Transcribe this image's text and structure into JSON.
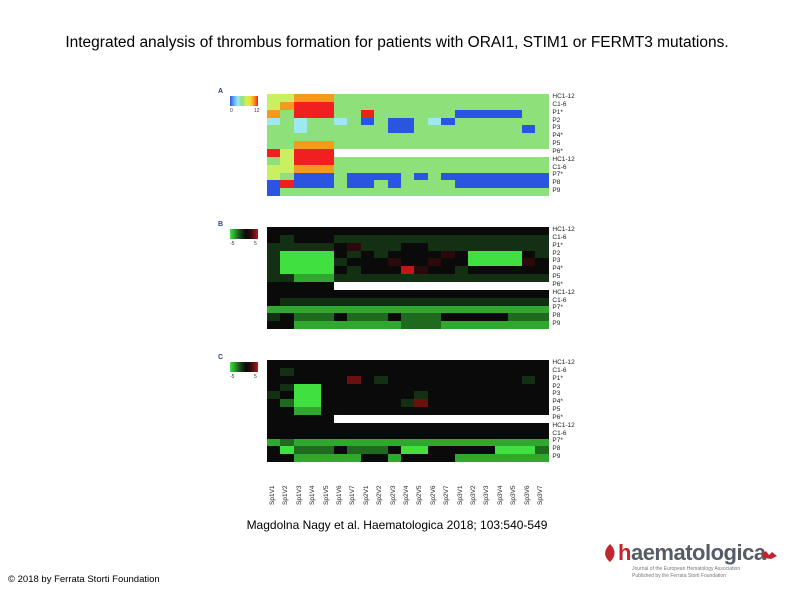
{
  "title": "Integrated analysis of thrombus formation for patients with ORAI1, STIM1 or FERMT3 mutations.",
  "citation": "Magdolna Nagy et al. Haematologica 2018; 103:540-549",
  "copyright": "© 2018 by Ferrata Storti Foundation",
  "logo": {
    "name": "haematologica",
    "subline1": "Journal of the European Hematology Association",
    "subline2": "Published by the Ferrata Storti Foundation"
  },
  "row_labels": [
    "HC1-12",
    "C1-6",
    "P1*",
    "P2",
    "P3",
    "P4*",
    "P5",
    "P6*",
    "HC1-12",
    "C1-6",
    "P7*",
    "P8",
    "P9"
  ],
  "column_labels": [
    "Sp1V1",
    "Sp1V2",
    "Sp1V3",
    "Sp1V4",
    "Sp1V5",
    "Sp1V6",
    "Sp1V7",
    "Sp2V1",
    "Sp2V2",
    "Sp2V3",
    "Sp2V4",
    "Sp2V5",
    "Sp2V6",
    "Sp2V7",
    "Sp3V1",
    "Sp3V2",
    "Sp3V3",
    "Sp3V4",
    "Sp3V5",
    "Sp3V6",
    "Sp3V7"
  ],
  "panels": [
    {
      "letter": "A",
      "legend_min": "0",
      "legend_max": "12",
      "colors": [
        "#2b55e0",
        "#5fb0f5",
        "#a0e8f0",
        "#8ee07a",
        "#c8f060",
        "#f5e030",
        "#f59a20",
        "#f02020"
      ],
      "values": [
        [
          4,
          4,
          6,
          6,
          6,
          3,
          3,
          3,
          3,
          3,
          3,
          3,
          3,
          3,
          3,
          3,
          3,
          3,
          3,
          3,
          3
        ],
        [
          4,
          6,
          7,
          7,
          7,
          3,
          3,
          3,
          3,
          3,
          3,
          3,
          3,
          3,
          3,
          3,
          3,
          3,
          3,
          3,
          3
        ],
        [
          6,
          3,
          7,
          7,
          7,
          3,
          3,
          7,
          3,
          3,
          3,
          3,
          3,
          3,
          0,
          0,
          0,
          0,
          0,
          3,
          3
        ],
        [
          2,
          3,
          2,
          3,
          3,
          2,
          3,
          0,
          3,
          0,
          0,
          3,
          2,
          0,
          3,
          3,
          3,
          3,
          3,
          3,
          3
        ],
        [
          3,
          3,
          2,
          3,
          3,
          3,
          3,
          3,
          3,
          0,
          0,
          3,
          3,
          3,
          3,
          3,
          3,
          3,
          3,
          0,
          3
        ],
        [
          3,
          3,
          3,
          3,
          3,
          3,
          3,
          3,
          3,
          3,
          3,
          3,
          3,
          3,
          3,
          3,
          3,
          3,
          3,
          3,
          3
        ],
        [
          3,
          3,
          6,
          6,
          6,
          3,
          3,
          3,
          3,
          3,
          3,
          3,
          3,
          3,
          3,
          3,
          3,
          3,
          3,
          3,
          3
        ],
        [
          7,
          4,
          7,
          7,
          7,
          -1,
          -1,
          -1,
          -1,
          -1,
          -1,
          -1,
          -1,
          -1,
          -1,
          -1,
          -1,
          -1,
          -1,
          -1,
          -1
        ],
        [
          3,
          4,
          7,
          7,
          7,
          3,
          3,
          3,
          3,
          3,
          3,
          3,
          3,
          3,
          3,
          3,
          3,
          3,
          3,
          3,
          3
        ],
        [
          4,
          4,
          6,
          6,
          6,
          3,
          3,
          3,
          3,
          3,
          3,
          3,
          3,
          3,
          3,
          3,
          3,
          3,
          3,
          3,
          3
        ],
        [
          4,
          3,
          0,
          0,
          0,
          3,
          0,
          0,
          0,
          0,
          3,
          0,
          3,
          0,
          0,
          0,
          0,
          0,
          0,
          0,
          0
        ],
        [
          0,
          7,
          0,
          0,
          0,
          3,
          0,
          0,
          3,
          0,
          3,
          3,
          3,
          3,
          0,
          0,
          0,
          0,
          0,
          0,
          0
        ],
        [
          0,
          3,
          3,
          3,
          3,
          3,
          3,
          3,
          3,
          3,
          3,
          3,
          3,
          3,
          3,
          3,
          3,
          3,
          3,
          3,
          3
        ]
      ]
    },
    {
      "letter": "B",
      "legend_min": "-5",
      "legend_max": "5",
      "colors": [
        "#40e040",
        "#30a830",
        "#1f6a1f",
        "#143014",
        "#0a0a0a",
        "#2a0a0a",
        "#6a1010",
        "#c01818"
      ],
      "values": [
        [
          4,
          4,
          4,
          4,
          4,
          4,
          4,
          4,
          4,
          4,
          4,
          4,
          4,
          4,
          4,
          4,
          4,
          4,
          4,
          4,
          4
        ],
        [
          4,
          3,
          4,
          4,
          4,
          3,
          3,
          3,
          3,
          3,
          3,
          3,
          3,
          3,
          3,
          3,
          3,
          3,
          3,
          3,
          3
        ],
        [
          3,
          3,
          3,
          3,
          3,
          4,
          5,
          3,
          3,
          3,
          4,
          4,
          3,
          3,
          3,
          3,
          3,
          3,
          3,
          3,
          3
        ],
        [
          3,
          0,
          0,
          0,
          0,
          4,
          3,
          4,
          3,
          4,
          4,
          4,
          4,
          5,
          4,
          0,
          0,
          0,
          0,
          4,
          3
        ],
        [
          3,
          0,
          0,
          0,
          0,
          3,
          4,
          4,
          4,
          5,
          4,
          4,
          5,
          4,
          4,
          0,
          0,
          0,
          0,
          5,
          4
        ],
        [
          3,
          0,
          0,
          0,
          0,
          4,
          3,
          4,
          4,
          4,
          7,
          5,
          4,
          4,
          3,
          4,
          4,
          4,
          4,
          4,
          4
        ],
        [
          3,
          3,
          1,
          1,
          1,
          3,
          3,
          3,
          3,
          3,
          3,
          3,
          3,
          3,
          3,
          3,
          3,
          3,
          3,
          3,
          3
        ],
        [
          4,
          4,
          4,
          4,
          4,
          -1,
          -1,
          -1,
          -1,
          -1,
          -1,
          -1,
          -1,
          -1,
          -1,
          -1,
          -1,
          -1,
          -1,
          -1,
          -1
        ],
        [
          4,
          4,
          4,
          4,
          4,
          4,
          4,
          4,
          4,
          4,
          4,
          4,
          4,
          4,
          4,
          4,
          4,
          4,
          4,
          4,
          4
        ],
        [
          4,
          3,
          3,
          3,
          3,
          3,
          3,
          3,
          3,
          3,
          3,
          3,
          3,
          3,
          3,
          3,
          3,
          3,
          3,
          3,
          3
        ],
        [
          1,
          1,
          1,
          1,
          1,
          1,
          1,
          1,
          1,
          1,
          1,
          1,
          1,
          1,
          1,
          1,
          1,
          1,
          1,
          1,
          1
        ],
        [
          3,
          4,
          2,
          2,
          2,
          4,
          2,
          2,
          2,
          4,
          2,
          2,
          2,
          4,
          4,
          4,
          4,
          4,
          2,
          2,
          2
        ],
        [
          4,
          4,
          1,
          1,
          1,
          1,
          1,
          1,
          1,
          1,
          2,
          2,
          2,
          1,
          1,
          1,
          1,
          1,
          1,
          1,
          1
        ]
      ]
    },
    {
      "letter": "C",
      "legend_min": "-5",
      "legend_max": "5",
      "colors": [
        "#40e040",
        "#30a830",
        "#1f6a1f",
        "#143014",
        "#0a0a0a",
        "#2a0a0a",
        "#6a1010",
        "#c01818"
      ],
      "values": [
        [
          4,
          4,
          4,
          4,
          4,
          4,
          4,
          4,
          4,
          4,
          4,
          4,
          4,
          4,
          4,
          4,
          4,
          4,
          4,
          4,
          4
        ],
        [
          4,
          3,
          4,
          4,
          4,
          4,
          4,
          4,
          4,
          4,
          4,
          4,
          4,
          4,
          4,
          4,
          4,
          4,
          4,
          4,
          4
        ],
        [
          4,
          4,
          4,
          4,
          4,
          4,
          6,
          4,
          3,
          4,
          4,
          4,
          4,
          4,
          4,
          4,
          4,
          4,
          4,
          3,
          4
        ],
        [
          4,
          3,
          0,
          0,
          4,
          4,
          4,
          4,
          4,
          4,
          4,
          4,
          4,
          4,
          4,
          4,
          4,
          4,
          4,
          4,
          4
        ],
        [
          3,
          4,
          0,
          0,
          4,
          4,
          4,
          4,
          4,
          4,
          4,
          3,
          4,
          4,
          4,
          4,
          4,
          4,
          4,
          4,
          4
        ],
        [
          4,
          2,
          0,
          0,
          4,
          4,
          4,
          4,
          4,
          4,
          3,
          6,
          4,
          4,
          4,
          4,
          4,
          4,
          4,
          4,
          4
        ],
        [
          4,
          4,
          1,
          1,
          4,
          4,
          4,
          4,
          4,
          4,
          4,
          4,
          4,
          4,
          4,
          4,
          4,
          4,
          4,
          4,
          4
        ],
        [
          4,
          4,
          4,
          4,
          4,
          -1,
          -1,
          -1,
          -1,
          -1,
          -1,
          -1,
          -1,
          -1,
          -1,
          -1,
          -1,
          -1,
          -1,
          -1,
          -1
        ],
        [
          4,
          4,
          4,
          4,
          4,
          4,
          4,
          4,
          4,
          4,
          4,
          4,
          4,
          4,
          4,
          4,
          4,
          4,
          4,
          4,
          4
        ],
        [
          4,
          4,
          4,
          4,
          4,
          4,
          4,
          4,
          4,
          4,
          4,
          4,
          4,
          4,
          4,
          4,
          4,
          4,
          4,
          4,
          4
        ],
        [
          1,
          2,
          1,
          1,
          1,
          1,
          1,
          1,
          1,
          1,
          1,
          1,
          1,
          1,
          1,
          1,
          1,
          1,
          1,
          1,
          1
        ],
        [
          4,
          0,
          2,
          2,
          2,
          4,
          2,
          2,
          2,
          4,
          0,
          0,
          4,
          4,
          4,
          4,
          4,
          0,
          0,
          0,
          2
        ],
        [
          4,
          4,
          1,
          1,
          1,
          1,
          1,
          4,
          4,
          1,
          4,
          4,
          4,
          4,
          1,
          1,
          1,
          1,
          1,
          1,
          1
        ]
      ]
    }
  ]
}
